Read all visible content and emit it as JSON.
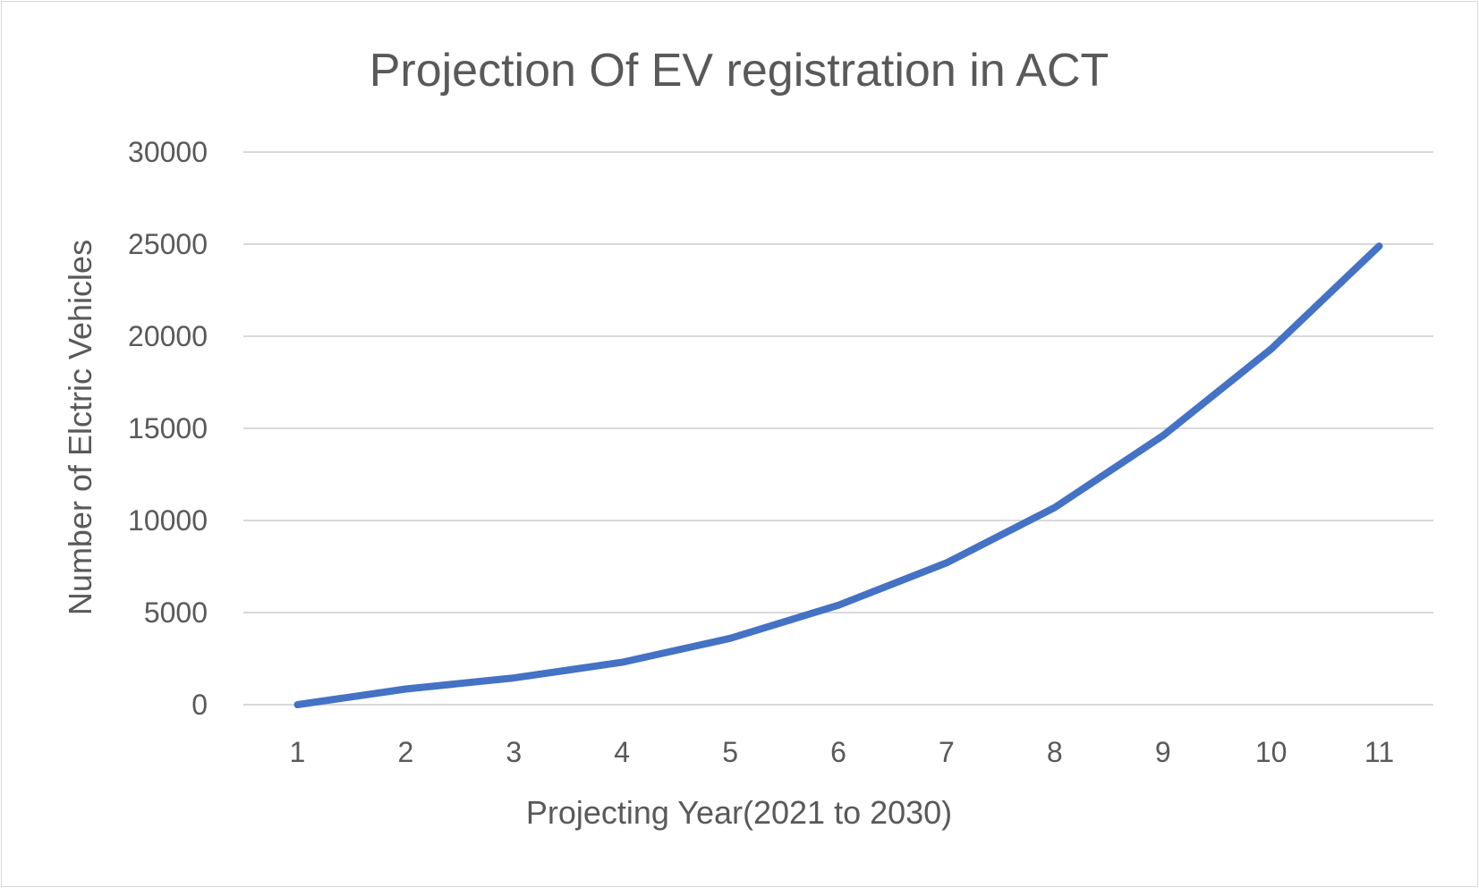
{
  "chart_data": {
    "type": "line",
    "title": "Projection Of EV registration in ACT",
    "xlabel": "Projecting Year(2021 to 2030)",
    "ylabel": "Number of Elctric Vehicles",
    "categories": [
      "1",
      "2",
      "3",
      "4",
      "5",
      "6",
      "7",
      "8",
      "9",
      "10",
      "11"
    ],
    "series": [
      {
        "values": [
          0,
          850,
          1450,
          2300,
          3600,
          5400,
          7700,
          10700,
          14600,
          19300,
          24900
        ]
      }
    ],
    "ylim": [
      0,
      30000
    ],
    "yticks": [
      0,
      5000,
      10000,
      15000,
      20000,
      25000,
      30000
    ],
    "grid": true,
    "legend": "none",
    "colors": {
      "series": "#4472c4",
      "grid": "#d9d9d9",
      "text": "#595959"
    }
  }
}
